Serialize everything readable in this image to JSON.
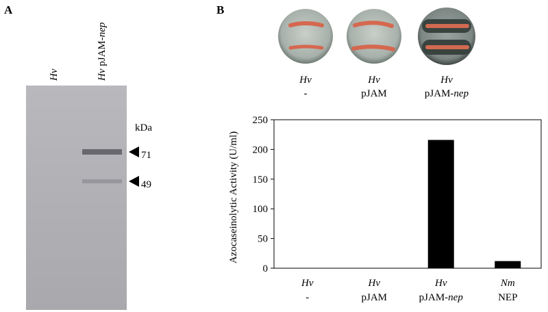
{
  "panel_a": {
    "label": "A",
    "lanes": [
      [
        {
          "text": "Hv",
          "italic": true
        }
      ],
      [
        {
          "text": "Hv",
          "italic": true
        },
        {
          "text": " pJAM-",
          "italic": false
        },
        {
          "text": "nep",
          "italic": true
        }
      ]
    ],
    "unit": "kDa",
    "markers": [
      71,
      49
    ]
  },
  "panel_b": {
    "label": "B"
  },
  "chart_data": {
    "type": "bar",
    "ylabel": "Azocaseinolytic Activity (U/ml)",
    "categories": [
      [
        [
          {
            "text": "Hv",
            "italic": true
          }
        ],
        [
          {
            "text": "-",
            "italic": false
          }
        ]
      ],
      [
        [
          {
            "text": "Hv",
            "italic": true
          }
        ],
        [
          {
            "text": "pJAM",
            "italic": false
          }
        ]
      ],
      [
        [
          {
            "text": "Hv",
            "italic": true
          }
        ],
        [
          {
            "text": "pJAM-",
            "italic": false
          },
          {
            "text": "nep",
            "italic": true
          }
        ]
      ],
      [
        [
          {
            "text": "Nm",
            "italic": true
          }
        ],
        [
          {
            "text": "NEP",
            "italic": false
          }
        ]
      ]
    ],
    "values": [
      0,
      0,
      216,
      12
    ],
    "color": "#000000",
    "ylim": [
      0,
      250
    ],
    "yticks": [
      0,
      50,
      100,
      150,
      200,
      250
    ],
    "grid": false
  }
}
